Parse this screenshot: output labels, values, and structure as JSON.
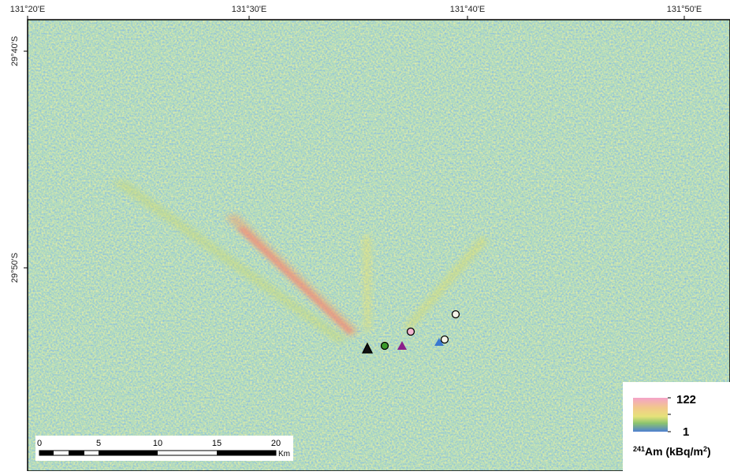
{
  "map": {
    "x_labels": [
      "131°20'E",
      "131°30'E",
      "131°40'E",
      "131°50'E"
    ],
    "y_labels": [
      "29°40'S",
      "29°50'S"
    ],
    "scale_bar": {
      "ticks": [
        0,
        5,
        10,
        15,
        20
      ],
      "unit": "Km"
    },
    "legend": {
      "max": 122,
      "min": 1,
      "isotope_mass": 241,
      "element": "Am (kBq/m",
      "unit_power": 2,
      "close": ")"
    }
  }
}
